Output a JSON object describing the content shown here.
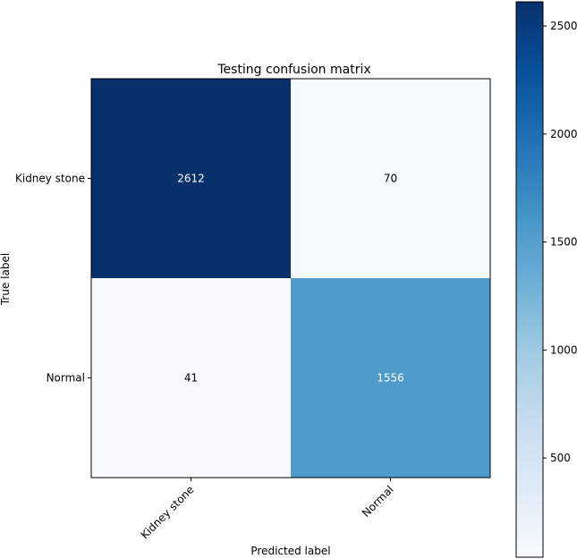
{
  "chart_data": {
    "type": "heatmap",
    "title": "Testing confusion matrix",
    "xlabel": "Predicted label",
    "ylabel": "True label",
    "x_categories": [
      "Kidney stone",
      "Normal"
    ],
    "y_categories": [
      "Kidney stone",
      "Normal"
    ],
    "values": [
      [
        2612,
        70
      ],
      [
        41,
        1556
      ]
    ],
    "value_labels": [
      [
        "2612",
        "70"
      ],
      [
        "41",
        "1556"
      ]
    ],
    "colormap": "Blues",
    "colorbar": {
      "range": [
        41,
        2612
      ],
      "ticks": [
        500,
        1000,
        1500,
        2000,
        2500
      ],
      "tick_labels": [
        "500",
        "1000",
        "1500",
        "2000",
        "2500"
      ]
    }
  }
}
